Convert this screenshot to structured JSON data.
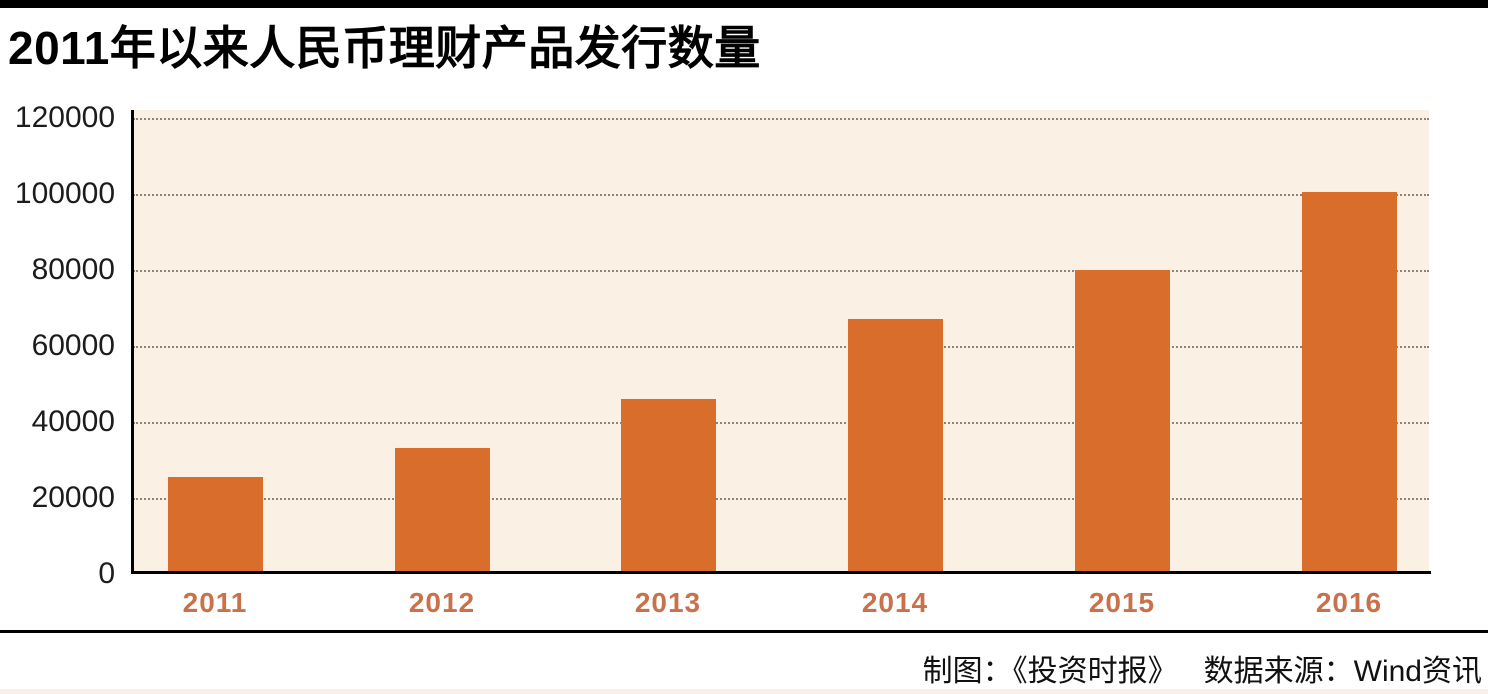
{
  "title": "2011年以来人民币理财产品发行数量",
  "footer": {
    "credit": "制图：《投资时报》",
    "source": "数据来源：Wind资讯"
  },
  "chart_data": {
    "type": "bar",
    "title": "2011年以来人民币理财产品发行数量",
    "categories": [
      "2011",
      "2012",
      "2013",
      "2014",
      "2015",
      "2016"
    ],
    "values": [
      25500,
      33000,
      46000,
      67000,
      80000,
      100500
    ],
    "y_ticks": [
      0,
      20000,
      40000,
      60000,
      80000,
      100000,
      120000
    ],
    "ylim": [
      0,
      122000
    ],
    "xlabel": "",
    "ylabel": "",
    "grid": "horizontal-dotted",
    "legend": "none",
    "colors": {
      "bar": "#D96E2C",
      "plot_background": "#FAF0E3",
      "x_tick_text": "#C9714A",
      "axis": "#000000",
      "gridline": "#8E8478"
    }
  }
}
